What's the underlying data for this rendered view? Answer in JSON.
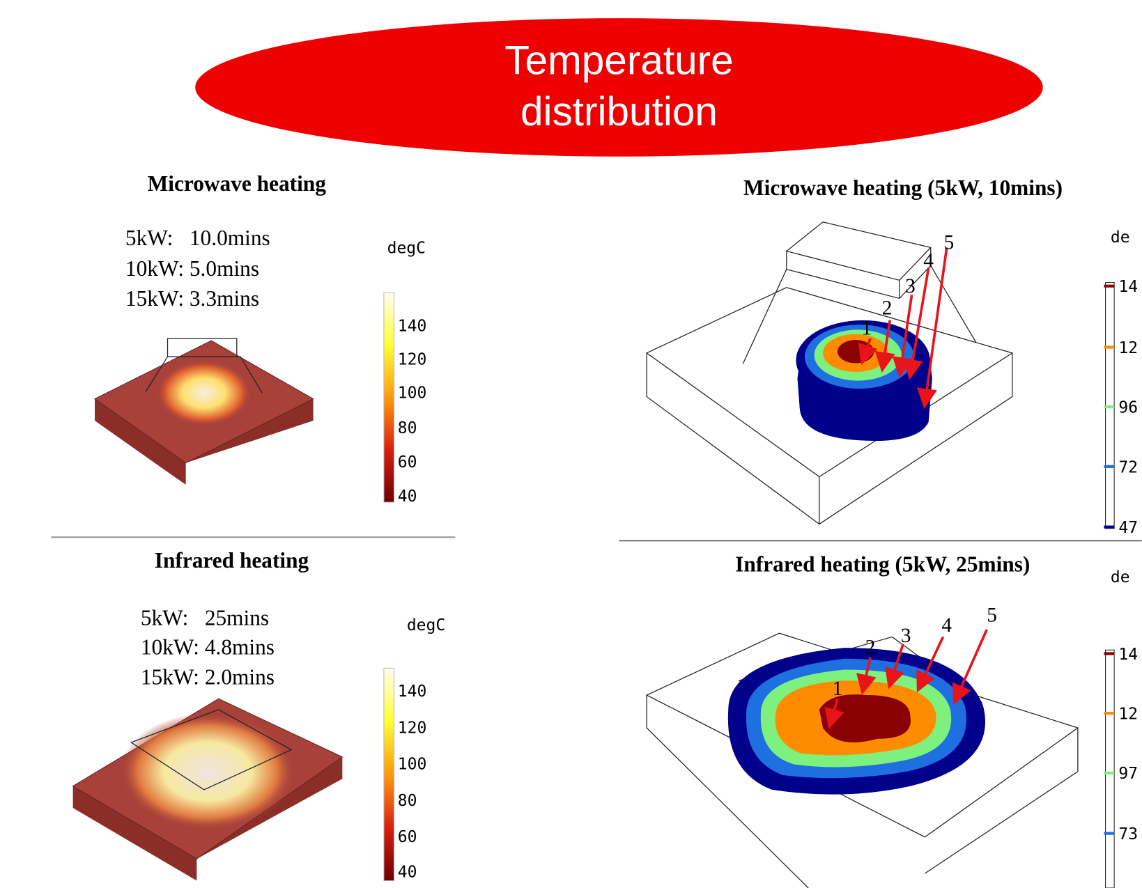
{
  "banner": {
    "lines": [
      "Temperature",
      "distribution"
    ]
  },
  "left_panels": [
    {
      "title": "Microwave heating",
      "times": [
        "5kW:   10.0mins",
        "10kW: 5.0mins",
        "15kW: 3.3mins"
      ],
      "unit": "degC",
      "colorbar_ticks": [
        140,
        120,
        100,
        80,
        60,
        40
      ]
    },
    {
      "title": "Infrared heating",
      "times": [
        "5kW:   25mins",
        "10kW: 4.8mins",
        "15kW: 2.0mins"
      ],
      "unit": "degC",
      "colorbar_ticks": [
        140,
        120,
        100,
        80,
        60,
        40
      ]
    }
  ],
  "right_panels": [
    {
      "title": "Microwave heating (5kW, 10mins)",
      "unit": "de",
      "colorbar_ticks": [
        "14",
        "12",
        "96",
        "72",
        "47"
      ],
      "markers": [
        "1",
        "2",
        "3",
        "4",
        "5"
      ]
    },
    {
      "title": "Infrared heating (5kW, 25mins)",
      "unit": "de",
      "colorbar_ticks": [
        "14",
        "12",
        "97",
        "73"
      ],
      "markers": [
        "1",
        "2",
        "3",
        "4",
        "5"
      ]
    }
  ]
}
